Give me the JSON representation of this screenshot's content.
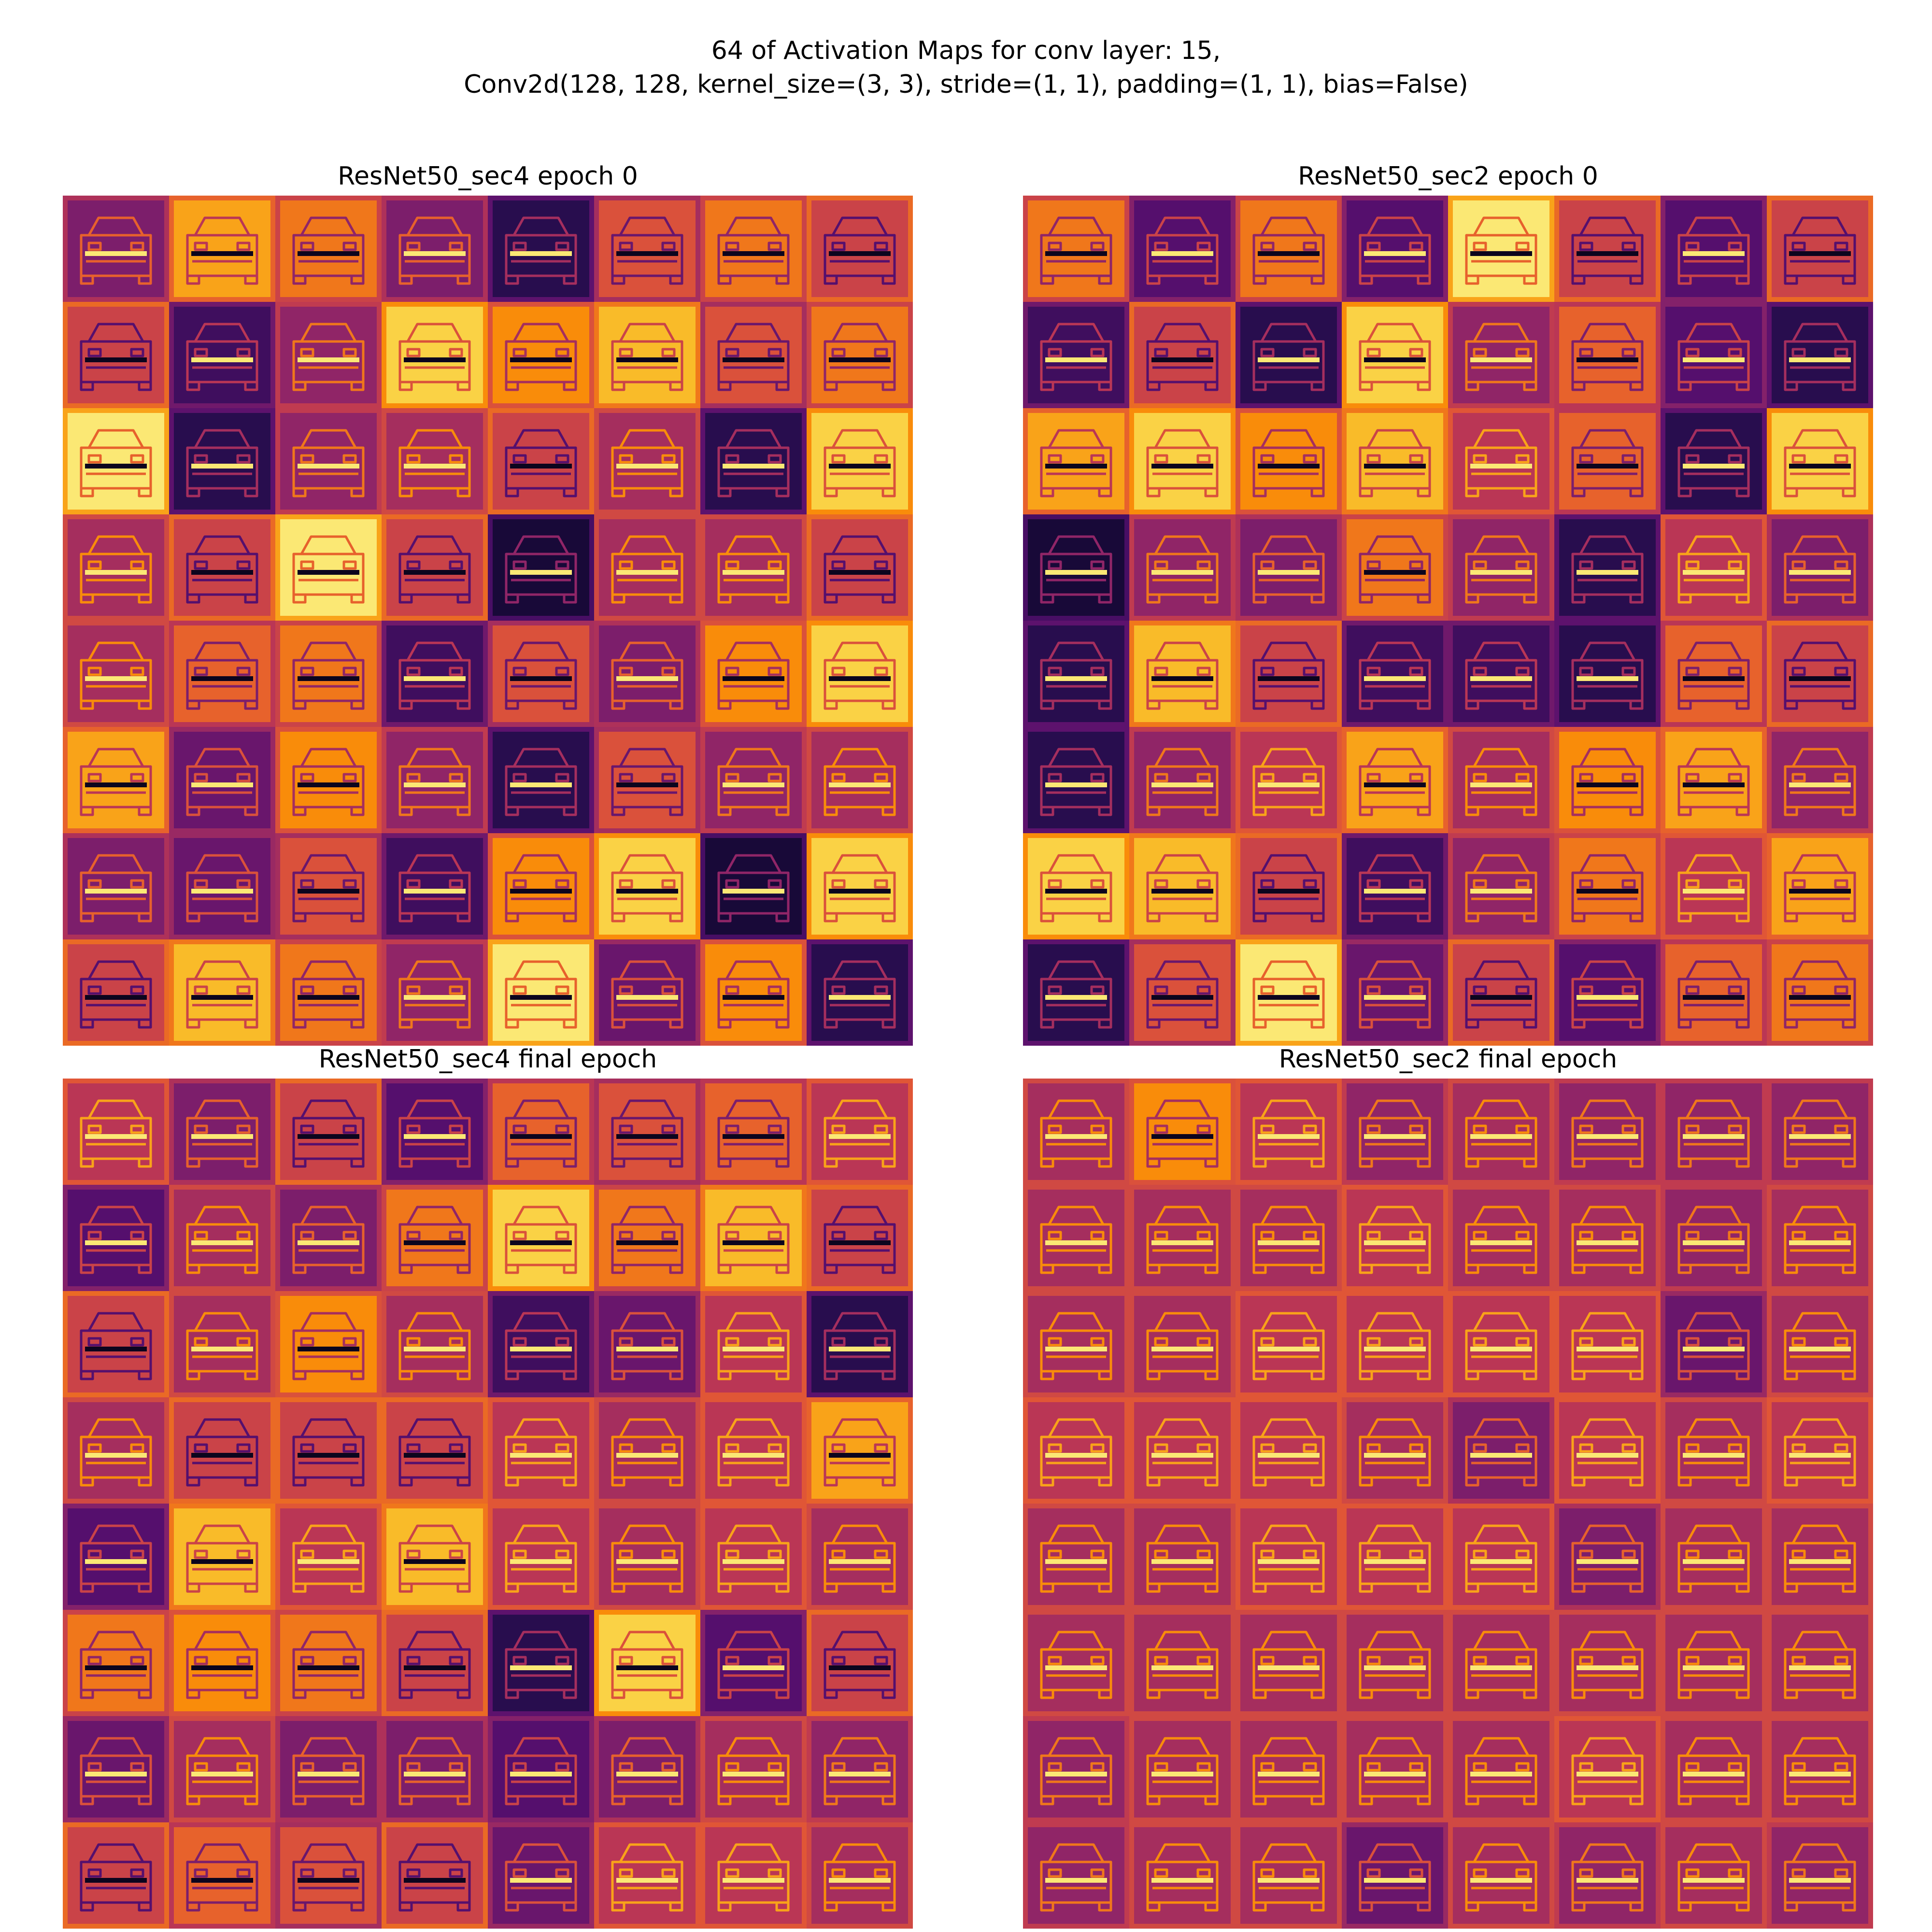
{
  "figure": {
    "suptitle_lines": [
      "64 of Activation Maps for conv layer: 15,",
      "Conv2d(128, 128, kernel_size=(3, 3), stride=(1, 1), padding=(1, 1), bias=False)"
    ]
  },
  "colormap": "inferno",
  "panels": [
    {
      "id": "sec4-epoch0",
      "title": "ResNet50_sec4 epoch 0",
      "levels": [
        0.35,
        0.8,
        0.7,
        0.35,
        0.15,
        0.6,
        0.7,
        0.55,
        0.55,
        0.2,
        0.4,
        0.9,
        0.75,
        0.85,
        0.6,
        0.7,
        0.95,
        0.15,
        0.4,
        0.45,
        0.55,
        0.45,
        0.15,
        0.9,
        0.45,
        0.55,
        0.95,
        0.55,
        0.1,
        0.45,
        0.45,
        0.55,
        0.45,
        0.65,
        0.7,
        0.2,
        0.6,
        0.35,
        0.75,
        0.9,
        0.8,
        0.3,
        0.75,
        0.4,
        0.15,
        0.6,
        0.4,
        0.45,
        0.35,
        0.3,
        0.6,
        0.2,
        0.75,
        0.9,
        0.1,
        0.9,
        0.55,
        0.85,
        0.7,
        0.4,
        0.95,
        0.3,
        0.75,
        0.15
      ]
    },
    {
      "id": "sec2-epoch0",
      "title": "ResNet50_sec2 epoch 0",
      "levels": [
        0.7,
        0.25,
        0.7,
        0.25,
        0.95,
        0.55,
        0.25,
        0.55,
        0.2,
        0.55,
        0.15,
        0.9,
        0.4,
        0.65,
        0.25,
        0.15,
        0.8,
        0.9,
        0.75,
        0.85,
        0.5,
        0.65,
        0.15,
        0.9,
        0.1,
        0.4,
        0.35,
        0.7,
        0.4,
        0.15,
        0.5,
        0.35,
        0.15,
        0.85,
        0.55,
        0.2,
        0.2,
        0.15,
        0.65,
        0.55,
        0.15,
        0.4,
        0.5,
        0.8,
        0.45,
        0.75,
        0.8,
        0.4,
        0.9,
        0.85,
        0.55,
        0.2,
        0.4,
        0.7,
        0.5,
        0.8,
        0.15,
        0.6,
        0.95,
        0.3,
        0.55,
        0.25,
        0.65,
        0.7
      ]
    },
    {
      "id": "sec4-final",
      "title": "ResNet50_sec4 final epoch",
      "levels": [
        0.5,
        0.35,
        0.55,
        0.25,
        0.65,
        0.6,
        0.65,
        0.5,
        0.25,
        0.45,
        0.35,
        0.7,
        0.9,
        0.7,
        0.85,
        0.55,
        0.55,
        0.45,
        0.75,
        0.45,
        0.2,
        0.3,
        0.5,
        0.15,
        0.45,
        0.55,
        0.55,
        0.55,
        0.5,
        0.45,
        0.5,
        0.8,
        0.25,
        0.85,
        0.5,
        0.85,
        0.5,
        0.45,
        0.5,
        0.45,
        0.7,
        0.75,
        0.7,
        0.55,
        0.15,
        0.9,
        0.25,
        0.55,
        0.3,
        0.45,
        0.35,
        0.35,
        0.25,
        0.35,
        0.45,
        0.4,
        0.55,
        0.65,
        0.6,
        0.55,
        0.3,
        0.5,
        0.5,
        0.45
      ]
    },
    {
      "id": "sec2-final",
      "title": "ResNet50_sec2 final epoch",
      "levels": [
        0.45,
        0.75,
        0.5,
        0.4,
        0.45,
        0.4,
        0.4,
        0.4,
        0.45,
        0.45,
        0.45,
        0.5,
        0.45,
        0.45,
        0.4,
        0.45,
        0.45,
        0.45,
        0.5,
        0.5,
        0.5,
        0.5,
        0.3,
        0.45,
        0.5,
        0.5,
        0.5,
        0.45,
        0.35,
        0.5,
        0.45,
        0.5,
        0.45,
        0.45,
        0.5,
        0.5,
        0.5,
        0.35,
        0.45,
        0.45,
        0.45,
        0.45,
        0.45,
        0.45,
        0.45,
        0.45,
        0.45,
        0.45,
        0.4,
        0.45,
        0.45,
        0.45,
        0.45,
        0.5,
        0.45,
        0.45,
        0.4,
        0.45,
        0.45,
        0.3,
        0.45,
        0.4,
        0.45,
        0.4
      ]
    }
  ]
}
